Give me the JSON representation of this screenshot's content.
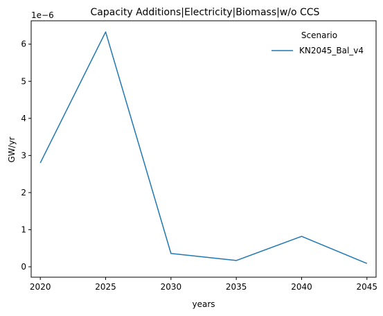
{
  "chart_data": {
    "type": "line",
    "title": "Capacity Additions|Electricity|Biomass|w/o CCS",
    "xlabel": "years",
    "ylabel": "GW/yr",
    "y_offset_label": "1e−6",
    "x": [
      2020,
      2025,
      2030,
      2035,
      2040,
      2045
    ],
    "xlim": [
      2019.3,
      2045.7
    ],
    "ylim": [
      -0.28,
      6.63
    ],
    "x_ticks": [
      "2020",
      "2025",
      "2030",
      "2035",
      "2040",
      "2045"
    ],
    "y_ticks": [
      "0",
      "1",
      "2",
      "3",
      "4",
      "5",
      "6"
    ],
    "grid": false,
    "legend": {
      "title": "Scenario",
      "placement": "top-right"
    },
    "series": [
      {
        "name": "KN2045_Bal_v4",
        "color": "#1f77b4",
        "values": [
          2.8,
          6.33,
          0.36,
          0.17,
          0.82,
          0.09
        ]
      }
    ],
    "scale_exponent": -6
  }
}
